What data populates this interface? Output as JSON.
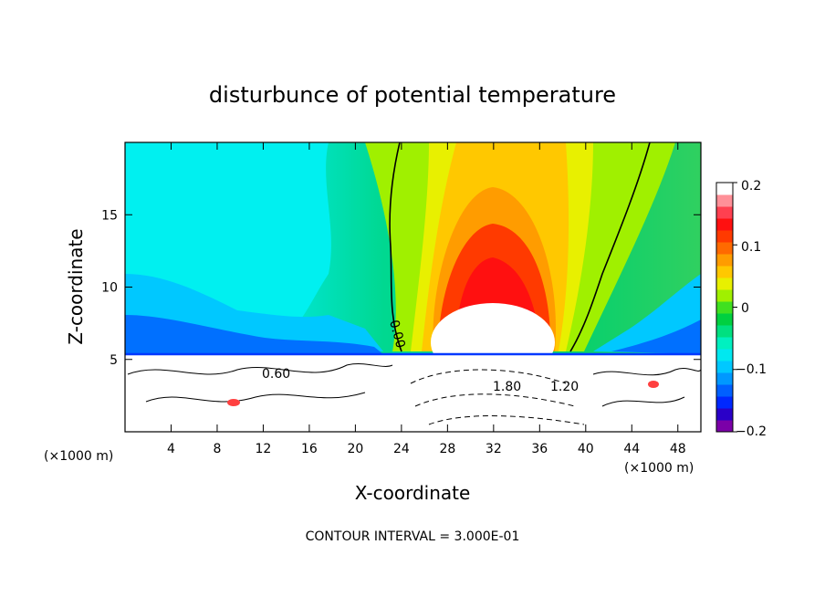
{
  "chart_data": {
    "type": "heatmap",
    "title": "disturbunce of potential temperature",
    "xlabel": "X-coordinate",
    "ylabel": "Z-coordinate",
    "x_unit": "(×1000 m)",
    "x_unit_right": "(×1000 m)",
    "xlim": [
      0,
      50
    ],
    "ylim": [
      0,
      20
    ],
    "x_ticks": [
      "4",
      "8",
      "12",
      "16",
      "20",
      "24",
      "28",
      "32",
      "36",
      "40",
      "44",
      "48"
    ],
    "y_ticks": [
      "5",
      "10",
      "15"
    ],
    "colorbar": {
      "range": [
        -0.2,
        0.2
      ],
      "tick_labels": [
        "0.2",
        "0.1",
        "0",
        "−0.1",
        "−0.2"
      ],
      "colors": [
        "#7b00a8",
        "#2a00c8",
        "#0028ff",
        "#0060ff",
        "#0098ff",
        "#00c8ff",
        "#00e8f0",
        "#00f0c0",
        "#00e080",
        "#00d040",
        "#40e020",
        "#a0f000",
        "#e8f000",
        "#ffc800",
        "#ff9c00",
        "#ff6a00",
        "#ff3a00",
        "#ff1010",
        "#ff4050",
        "#ff9098",
        "#ffffff"
      ]
    },
    "contour_labels": [
      "0.00",
      "0.60",
      "1.80",
      "1.20"
    ],
    "contour_interval_text": "CONTOUR INTERVAL = 3.000E-01",
    "grid": false
  }
}
